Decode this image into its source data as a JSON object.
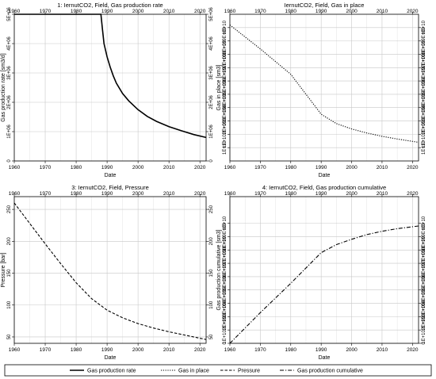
{
  "chart_data": [
    {
      "type": "line",
      "title": "1: IernutCO2, Field, Gas production rate",
      "xlabel": "Date",
      "ylabel": "Gas production rate [sm3/d]",
      "xlim": [
        1960,
        2022
      ],
      "ylim": [
        0,
        5000000
      ],
      "xticks": [
        "1960",
        "1970",
        "1980",
        "1990",
        "2000",
        "2010",
        "2020"
      ],
      "yticks": [
        "0",
        "1E+06",
        "2E+06",
        "3E+06",
        "4E+06",
        "5E+06"
      ],
      "right_yticks": [
        "0",
        "1E+06",
        "2E+06",
        "3E+06",
        "4E+06",
        "5E+06"
      ],
      "grid": true,
      "series": [
        {
          "name": "Gas production rate",
          "dash": "solid",
          "x": [
            1960,
            1970,
            1980,
            1988,
            1988.5,
            1989,
            1990,
            1991,
            1992,
            1993,
            1995,
            1997,
            2000,
            2003,
            2006,
            2010,
            2014,
            2018,
            2022
          ],
          "y": [
            5000000,
            5000000,
            5000000,
            5000000,
            4500000,
            4000000,
            3550000,
            3200000,
            2900000,
            2650000,
            2300000,
            2050000,
            1750000,
            1520000,
            1350000,
            1170000,
            1030000,
            900000,
            800000
          ]
        }
      ]
    },
    {
      "type": "line",
      "title": "IernutCO2, Field, Gas in place",
      "xlabel": "Date",
      "ylabel": "Gas in place [sm3]",
      "xlim": [
        1960,
        2022
      ],
      "ylim": [
        0,
        11000000000.0
      ],
      "xticks": [
        "1960",
        "1970",
        "1980",
        "1990",
        "2000",
        "2010",
        "2020"
      ],
      "yticks": [
        "1E+10",
        "1E+102E+09",
        "1E+103E+09",
        "1E+104E+09",
        "1E+105E+09",
        "1E+106E+09",
        "1E+107E+09",
        "1E+108E+09",
        "1E+109E+09",
        "1E+10"
      ],
      "right_yticks": [
        "1E+10",
        "1E+102E+09",
        "1E+103E+09",
        "1E+104E+09",
        "1E+105E+09",
        "1E+106E+09",
        "1E+107E+09",
        "1E+108E+09",
        "1E+109E+09",
        "1E+10"
      ],
      "grid": true,
      "series": [
        {
          "name": "Gas in place",
          "dash": "dotted",
          "x": [
            1960,
            1970,
            1980,
            1990,
            1995,
            2000,
            2005,
            2010,
            2015,
            2022
          ],
          "y": [
            10200000000,
            8400000000,
            6500000000,
            3500000000,
            2800000000,
            2400000000,
            2100000000,
            1850000000,
            1650000000,
            1400000000
          ]
        }
      ]
    },
    {
      "type": "line",
      "title": "3: IernutCO2, Field, Pressure",
      "xlabel": "Date",
      "ylabel": "Pressure [bar]",
      "xlim": [
        1960,
        2022
      ],
      "ylim": [
        40,
        270
      ],
      "xticks": [
        "1960",
        "1970",
        "1980",
        "1990",
        "2000",
        "2010",
        "2020"
      ],
      "yticks": [
        "50",
        "100",
        "150",
        "200",
        "250"
      ],
      "right_yticks": [
        "50",
        "100",
        "150",
        "200",
        "250"
      ],
      "grid": true,
      "series": [
        {
          "name": "Pressure",
          "dash": "dashed",
          "x": [
            1960,
            1965,
            1970,
            1975,
            1980,
            1985,
            1990,
            1995,
            2000,
            2005,
            2010,
            2015,
            2020,
            2022
          ],
          "y": [
            260,
            228,
            196,
            165,
            135,
            110,
            92,
            80,
            71,
            64,
            58,
            53,
            48,
            46
          ]
        }
      ]
    },
    {
      "type": "line",
      "title": "4: IernutCO2, Field, Gas production cumulative",
      "xlabel": "Date",
      "ylabel": "Gas production cumulative [sm3]",
      "xlim": [
        1960,
        2022
      ],
      "ylim": [
        0,
        11000000000.0
      ],
      "xticks": [
        "1960",
        "1970",
        "1980",
        "1990",
        "2000",
        "2010",
        "2020"
      ],
      "yticks": [
        "0",
        "1E+102E+09",
        "1E+103E+09",
        "1E+104E+09",
        "1E+105E+09",
        "1E+106E+09",
        "1E+107E+09",
        "1E+108E+09",
        "1E+109E+09",
        "1E+10"
      ],
      "right_yticks": [
        "0",
        "1E+102E+09",
        "1E+103E+09",
        "1E+104E+09",
        "1E+105E+09",
        "1E+106E+09",
        "1E+107E+09",
        "1E+108E+09",
        "1E+109E+09",
        "1E+10"
      ],
      "grid": true,
      "series": [
        {
          "name": "Gas production cumulative",
          "dash": "dashdot",
          "x": [
            1960,
            1970,
            1980,
            1990,
            1995,
            2000,
            2005,
            2010,
            2015,
            2022
          ],
          "y": [
            0,
            2300000000,
            4500000000,
            6800000000,
            7400000000,
            7800000000,
            8150000000,
            8400000000,
            8600000000,
            8800000000
          ]
        }
      ]
    }
  ],
  "legend": {
    "entries": [
      {
        "label": "Gas production rate",
        "dash": "solid"
      },
      {
        "label": "Gas in place",
        "dash": "dotted"
      },
      {
        "label": "Pressure",
        "dash": "dashed"
      },
      {
        "label": "Gas production cumulative",
        "dash": "dashdot"
      }
    ]
  }
}
